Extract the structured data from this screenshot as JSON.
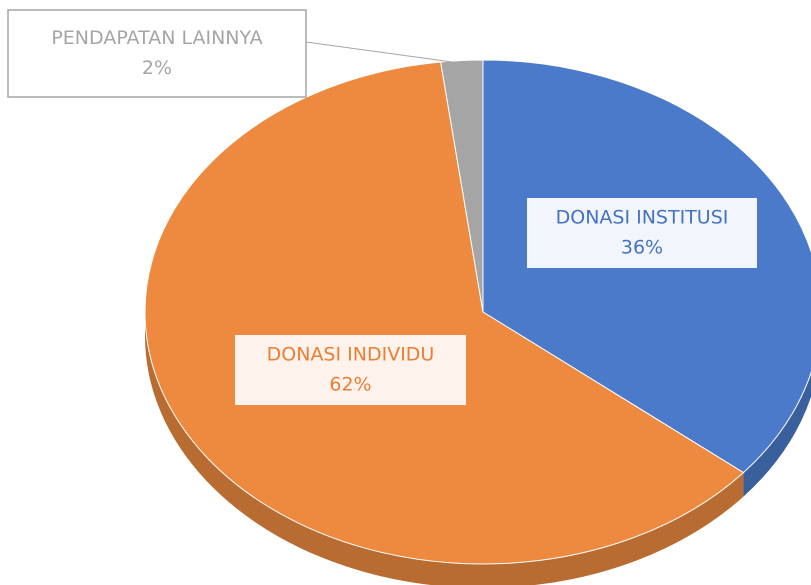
{
  "chart_data": {
    "type": "pie",
    "categories": [
      "DONASI INSTITUSI",
      "DONASI INDIVIDU",
      "PENDAPATAN LAINNYA"
    ],
    "values": [
      36,
      62,
      2
    ],
    "value_labels": [
      "36%",
      "62%",
      "2%"
    ],
    "colors": [
      "#4a7ac9",
      "#ed8a3f",
      "#a5a5a5"
    ],
    "label_colors": [
      "#4472c4",
      "#ed7d31",
      "#a5a5a5"
    ]
  }
}
